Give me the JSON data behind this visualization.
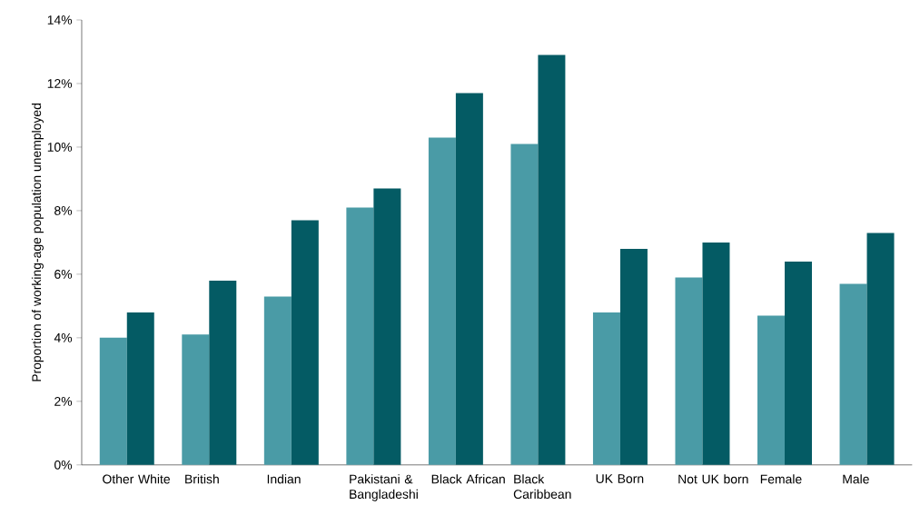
{
  "chart_data": {
    "type": "bar",
    "ylabel": "Proportion of working-age population unemployed",
    "categories": [
      "Other White",
      "British",
      "Indian",
      "Pakistani & Bangladeshi",
      "Black African",
      "Black Caribbean",
      "UK Born",
      "Not UK born",
      "Female",
      "Male"
    ],
    "series": [
      {
        "color": "#4a9ba6",
        "values": [
          4.0,
          4.1,
          5.3,
          8.1,
          10.3,
          10.1,
          4.8,
          5.9,
          4.7,
          5.7
        ]
      },
      {
        "color": "#045b64",
        "values": [
          4.8,
          5.8,
          7.7,
          8.7,
          11.7,
          12.9,
          6.8,
          7.0,
          6.4,
          7.3
        ]
      }
    ],
    "ylim": [
      0,
      14
    ],
    "yticks": [
      {
        "value": 0,
        "label": "0%"
      },
      {
        "value": 2,
        "label": "2%"
      },
      {
        "value": 4,
        "label": "4%"
      },
      {
        "value": 6,
        "label": "6%"
      },
      {
        "value": 8,
        "label": "8%"
      },
      {
        "value": 10,
        "label": "10%"
      },
      {
        "value": 12,
        "label": "12%"
      },
      {
        "value": 14,
        "label": "14%"
      }
    ],
    "grid": false
  }
}
